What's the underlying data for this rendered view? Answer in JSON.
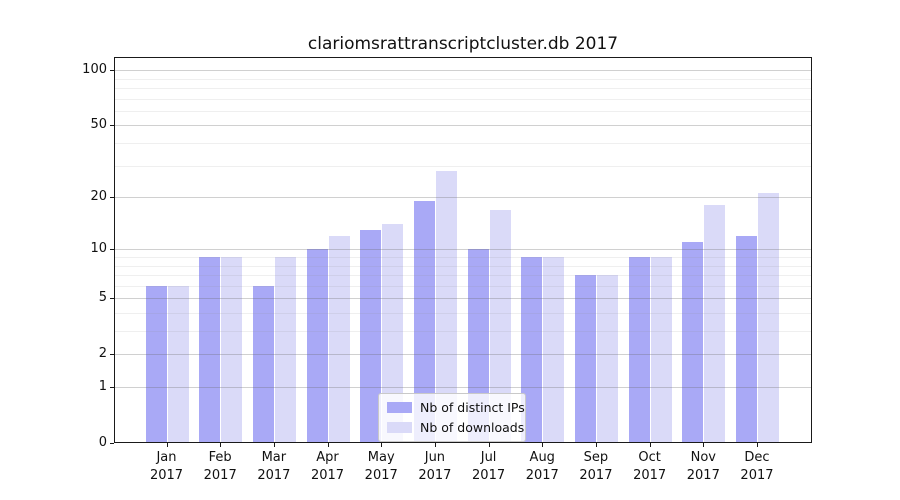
{
  "figure": {
    "title": "clariomsrattranscriptcluster.db 2017"
  },
  "chart_data": {
    "type": "bar",
    "title": "clariomsrattranscriptcluster.db 2017",
    "categories": [
      "Jan 2017",
      "Feb 2017",
      "Mar 2017",
      "Apr 2017",
      "May 2017",
      "Jun 2017",
      "Jul 2017",
      "Aug 2017",
      "Sep 2017",
      "Oct 2017",
      "Nov 2017",
      "Dec 2017"
    ],
    "series": [
      {
        "name": "Nb of distinct IPs",
        "color": "#a9a9f6",
        "values": [
          6,
          9,
          6,
          10,
          13,
          19,
          10,
          9,
          7,
          9,
          11,
          12
        ]
      },
      {
        "name": "Nb of downloads",
        "color": "#dadaf8",
        "values": [
          6,
          9,
          9,
          12,
          14,
          28,
          17,
          9,
          7,
          9,
          18,
          21
        ]
      }
    ],
    "xlabel": "",
    "ylabel": "",
    "yscale": "log1p",
    "ylim": [
      0,
      118
    ],
    "yticks": [
      0,
      1,
      2,
      5,
      10,
      20,
      50,
      100
    ],
    "yticks_minor": [
      3,
      4,
      6,
      7,
      8,
      9,
      30,
      40,
      60,
      70,
      80,
      90
    ],
    "grid": true,
    "legend_position": "lower center",
    "colors": {
      "background": "#ffffff",
      "major_grid": "#d5d5d5",
      "minor_grid": "#ececec",
      "axis": "#1a1a1a",
      "text": "#111111"
    }
  }
}
